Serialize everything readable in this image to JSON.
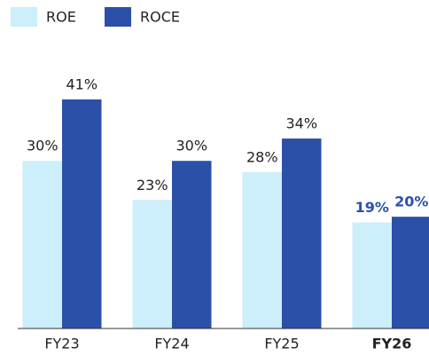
{
  "chart_data": {
    "type": "bar",
    "categories": [
      "FY23",
      "FY24",
      "FY25",
      "FY26"
    ],
    "series": [
      {
        "name": "ROE",
        "color": "#cdeefb",
        "values": [
          30,
          23,
          28,
          19
        ],
        "value_labels": [
          "30%",
          "23%",
          "28%",
          "19%"
        ]
      },
      {
        "name": "ROCE",
        "color": "#2b50a8",
        "values": [
          41,
          30,
          34,
          20
        ],
        "value_labels": [
          "41%",
          "30%",
          "34%",
          "20%"
        ]
      }
    ],
    "highlight_index": 3,
    "highlight_color": "#2b50a8"
  }
}
